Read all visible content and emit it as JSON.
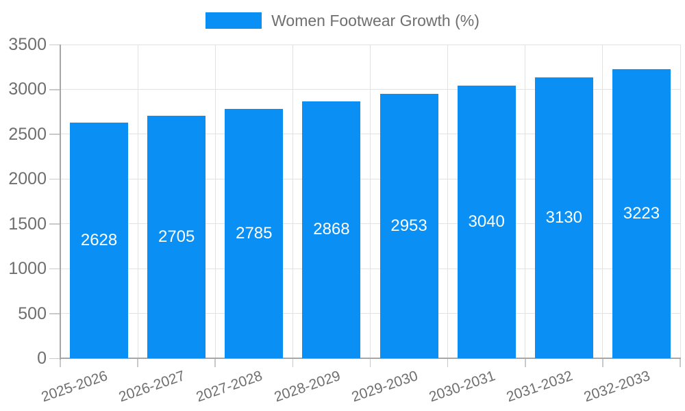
{
  "chart_data": {
    "type": "bar",
    "title": "Women Footwear Growth (%)",
    "legend": {
      "label": "Women Footwear Growth (%)",
      "position": "top"
    },
    "categories": [
      "2025-2026",
      "2026-2027",
      "2027-2028",
      "2028-2029",
      "2029-2030",
      "2030-2031",
      "2031-2032",
      "2032-2033"
    ],
    "values": [
      2628,
      2705,
      2785,
      2868,
      2953,
      3040,
      3130,
      3223
    ],
    "xlabel": "",
    "ylabel": "",
    "ylim": [
      0,
      3500
    ],
    "ytick_step": 500,
    "yticks": [
      0,
      500,
      1000,
      1500,
      2000,
      2500,
      3000,
      3500
    ],
    "grid": true,
    "value_labels_inside_bars": true,
    "colors": {
      "bar": "#0a90f4",
      "value_label": "#ffffff",
      "axis_text": "#6f6f6f",
      "gridline": "#e2e2e2",
      "axis_line": "#a6a6a6",
      "tick_mark": "#c9c9c9",
      "background": "#ffffff"
    }
  }
}
